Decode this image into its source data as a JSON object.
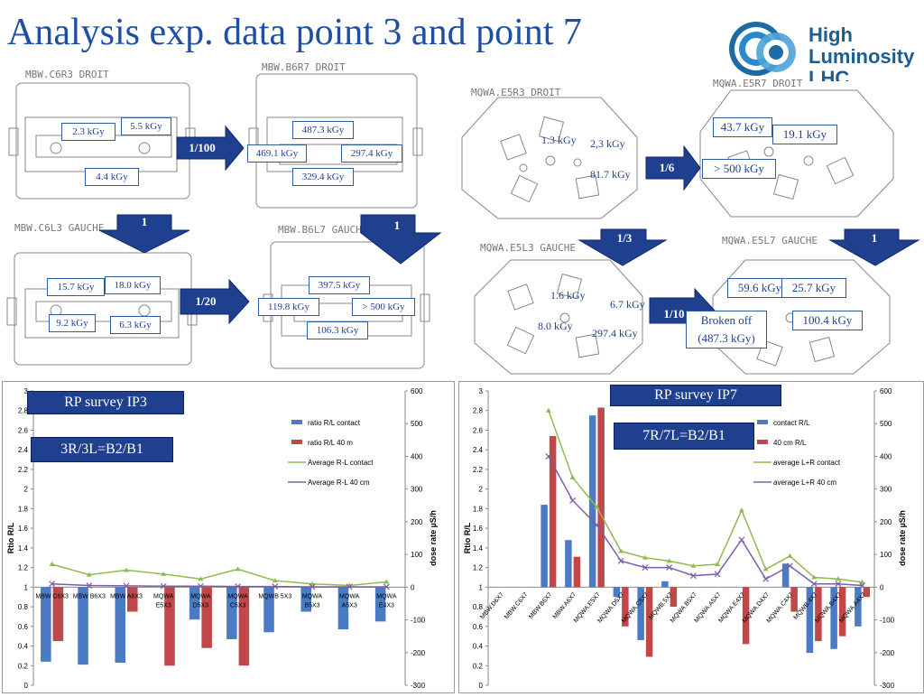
{
  "title": "Analysis exp. data point 3 and point 7",
  "logo": {
    "line1": "High",
    "line2": "Luminosity",
    "line3": "LHC"
  },
  "machines": [
    {
      "label": "MBW.C6R3  DROIT"
    },
    {
      "label": "MBW.B6R7  DROIT"
    },
    {
      "label": "MQWA.E5R3  DROIT"
    },
    {
      "label": "MQWA.E5R7  DROIT"
    },
    {
      "label": "MBW.C6L3  GAUCHE"
    },
    {
      "label": "MBW.B6L7  GAUCHE"
    },
    {
      "label": "MQWA.E5L3  GAUCHE"
    },
    {
      "label": "MQWA.E5L7  GAUCHE"
    }
  ],
  "doses": {
    "c6r3": [
      "5.5 kGy",
      "2.3 kGy",
      "4.4 kGy"
    ],
    "b6r7": [
      "487.3 kGy",
      "469.1 kGy",
      "297.4 kGy",
      "329.4 kGy"
    ],
    "e5r3": [
      "1.3 kGy",
      "2,3 kGy",
      "81.7 kGy"
    ],
    "e5r7": [
      "43.7 kGy",
      "19.1 kGy",
      "> 500 kGy"
    ],
    "c6l3": [
      "15.7 kGy",
      "18.0 kGy",
      "9.2 kGy",
      "6.3 kGy"
    ],
    "b6l7": [
      "397.5 kGy",
      "119.8 kGy",
      "> 500 kGy",
      "106.3 kGy"
    ],
    "e5l3": [
      "1.6 kGy",
      "6.7 kGy",
      "8.0 kGy",
      "297.4 kGy"
    ],
    "e5l7": [
      "59.6 kGy",
      "25.7 kGy",
      "Broken off",
      "(487.3 kGy)",
      "100.4 kGy"
    ]
  },
  "ratios": {
    "r1": "1/100",
    "r2": "1",
    "r3": "1",
    "r4": "1/20",
    "r5": "1/6",
    "r6": "1/3",
    "r7": "1",
    "r8": "1/10"
  },
  "labels": {
    "ip3": "RP survey IP3",
    "ip3_ratio": "3R/3L=B2/B1",
    "ip7": "RP survey IP7",
    "ip7_ratio": "7R/7L=B2/B1"
  },
  "colors": {
    "bar_blue": "#4a7bc4",
    "bar_red": "#c0474a",
    "line_green": "#8fbc4f",
    "line_purple": "#7b5ea8",
    "accent": "#1f3f8f"
  },
  "chart_data": [
    {
      "type": "bar",
      "title": "",
      "ylabel": "Rtio R/L",
      "y2label": "dose rate µS/h",
      "ylim": [
        0,
        3
      ],
      "y2lim": [
        -300,
        600
      ],
      "yticks": [
        "0",
        "0.2",
        "0.4",
        "0.6",
        "0.8",
        "1",
        "1.2",
        "1.4",
        "1.6",
        "1.8",
        "2",
        "2.2",
        "2.4",
        "2.6",
        "2.8",
        "3"
      ],
      "y2ticks": [
        "-300",
        "-200",
        "-100",
        "0",
        "100",
        "200",
        "300",
        "400",
        "500",
        "600"
      ],
      "categories": [
        "MBW C6X3",
        "MBW B6X3",
        "MBW A6X3",
        "MQWA E5X3",
        "MQWA D5X3",
        "MQWA C5X3",
        "MQWB 5X3",
        "MQWA B5X3",
        "MQWA A5X3",
        "MQWA E4X3"
      ],
      "series": [
        {
          "name": "ratio R/L contact",
          "kind": "bar",
          "axis": "left",
          "values": [
            0.24,
            0.21,
            0.23,
            null,
            0.67,
            0.47,
            0.54,
            0.75,
            0.57,
            0.65
          ]
        },
        {
          "name": "ratio R/L 40 m",
          "kind": "bar",
          "axis": "left",
          "values": [
            0.45,
            null,
            0.75,
            0.2,
            0.38,
            0.2,
            null,
            null,
            null,
            null
          ]
        },
        {
          "name": "Average R-L contact",
          "kind": "line",
          "axis": "right",
          "values": [
            70,
            38,
            52,
            40,
            25,
            55,
            20,
            10,
            5,
            16
          ]
        },
        {
          "name": "Average R-L 40 cm",
          "kind": "line",
          "axis": "right",
          "values": [
            10,
            5,
            4,
            3,
            3,
            2,
            2,
            1,
            1,
            1
          ]
        }
      ],
      "legend": "top-right",
      "grid": false
    },
    {
      "type": "bar",
      "title": "",
      "ylabel": "Rtio R/L",
      "y2label": "dose rate µS/h",
      "ylim": [
        0,
        3
      ],
      "y2lim": [
        -300,
        600
      ],
      "yticks": [
        "0",
        "0.2",
        "0.4",
        "0.6",
        "0.8",
        "1",
        "1.2",
        "1.4",
        "1.6",
        "1.8",
        "2",
        "2.2",
        "2.4",
        "2.6",
        "2.8",
        "3"
      ],
      "y2ticks": [
        "-300",
        "-200",
        "-100",
        "0",
        "100",
        "200",
        "300",
        "400",
        "500",
        "600"
      ],
      "categories": [
        "MBW.D6X7",
        "MBW.C6X7",
        "MBW.B6X7",
        "MBW.A6X7",
        "MQWA.E5X7",
        "MQWA.D5X7",
        "MQWA.C5X7",
        "MQWB.5X7",
        "MQWA.B5X7",
        "MQWA.A5X7",
        "MQWA.E4X7",
        "MQWA.D4X7",
        "MQWA.C4X7",
        "MQWB.4X7",
        "MQWA.B4X7",
        "MQWA.A4X7"
      ],
      "series": [
        {
          "name": "contact R/L",
          "kind": "bar",
          "axis": "left",
          "values": [
            null,
            null,
            1.84,
            1.48,
            2.75,
            0.9,
            0.46,
            1.06,
            null,
            null,
            null,
            null,
            1.24,
            0.33,
            0.37,
            0.6
          ]
        },
        {
          "name": "40 cm R/L",
          "kind": "bar",
          "axis": "left",
          "values": [
            null,
            null,
            2.54,
            1.31,
            2.83,
            0.6,
            0.29,
            0.8,
            null,
            null,
            0.42,
            null,
            0.75,
            0.45,
            0.5,
            0.9
          ]
        },
        {
          "name": "average L+R contact",
          "kind": "line",
          "axis": "right",
          "values": [
            null,
            null,
            540,
            335,
            245,
            110,
            90,
            80,
            65,
            70,
            235,
            55,
            95,
            30,
            25,
            15
          ]
        },
        {
          "name": "average L+R  40 cm",
          "kind": "line",
          "axis": "right",
          "values": [
            null,
            null,
            400,
            265,
            190,
            80,
            60,
            60,
            35,
            40,
            145,
            25,
            65,
            10,
            10,
            5
          ]
        }
      ],
      "legend": "top-right",
      "grid": false
    }
  ]
}
